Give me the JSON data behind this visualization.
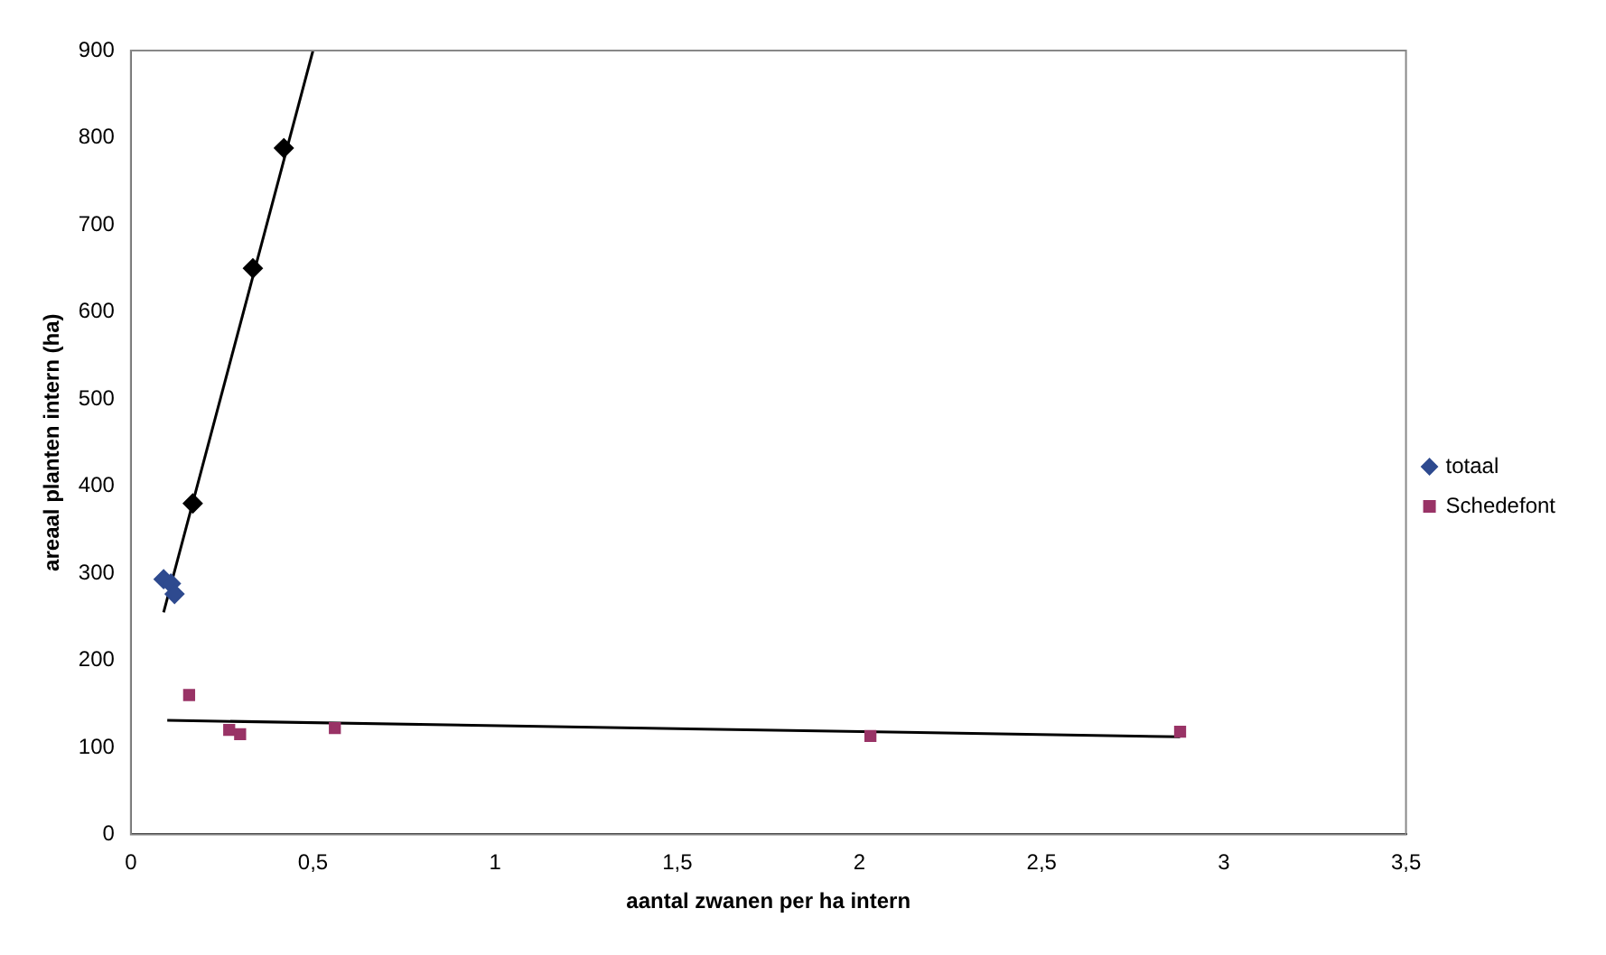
{
  "chart_data": {
    "type": "scatter",
    "xlabel": "aantal zwanen per ha intern",
    "ylabel": "areaal planten intern (ha)",
    "xlim": [
      0,
      3.5
    ],
    "ylim": [
      0,
      900
    ],
    "xticks": [
      0,
      {
        "value": 0.5,
        "label": "0,5"
      },
      1,
      {
        "value": 1.5,
        "label": "1,5"
      },
      2,
      {
        "value": 2.5,
        "label": "2,5"
      },
      3,
      {
        "value": 3.5,
        "label": "3,5"
      }
    ],
    "yticks": [
      0,
      100,
      200,
      300,
      400,
      500,
      600,
      700,
      800,
      900
    ],
    "grid": false,
    "legend": "right",
    "series": [
      {
        "name": "totaal",
        "color": "#2e4a8f",
        "marker": "diamond",
        "x": [
          0.09,
          0.11,
          0.12
        ],
        "values": [
          293,
          288,
          276
        ]
      },
      {
        "name": "Schedefont",
        "color": "#993366",
        "marker": "square",
        "x": [
          0.16,
          0.27,
          0.3,
          0.56,
          2.03,
          2.88
        ],
        "values": [
          160,
          120,
          115,
          122,
          113,
          118
        ]
      },
      {
        "color": "#000000",
        "marker": "diamond",
        "x": [
          0.17,
          0.335,
          0.42
        ],
        "values": [
          380,
          650,
          788
        ]
      },
      {
        "type": "line",
        "color": "#000000",
        "marker": "none",
        "x": [
          0.09,
          0.5
        ],
        "values": [
          255,
          900
        ]
      },
      {
        "type": "line",
        "color": "#000000",
        "marker": "none",
        "x": [
          0.1,
          2.88
        ],
        "values": [
          131,
          112
        ]
      }
    ]
  }
}
